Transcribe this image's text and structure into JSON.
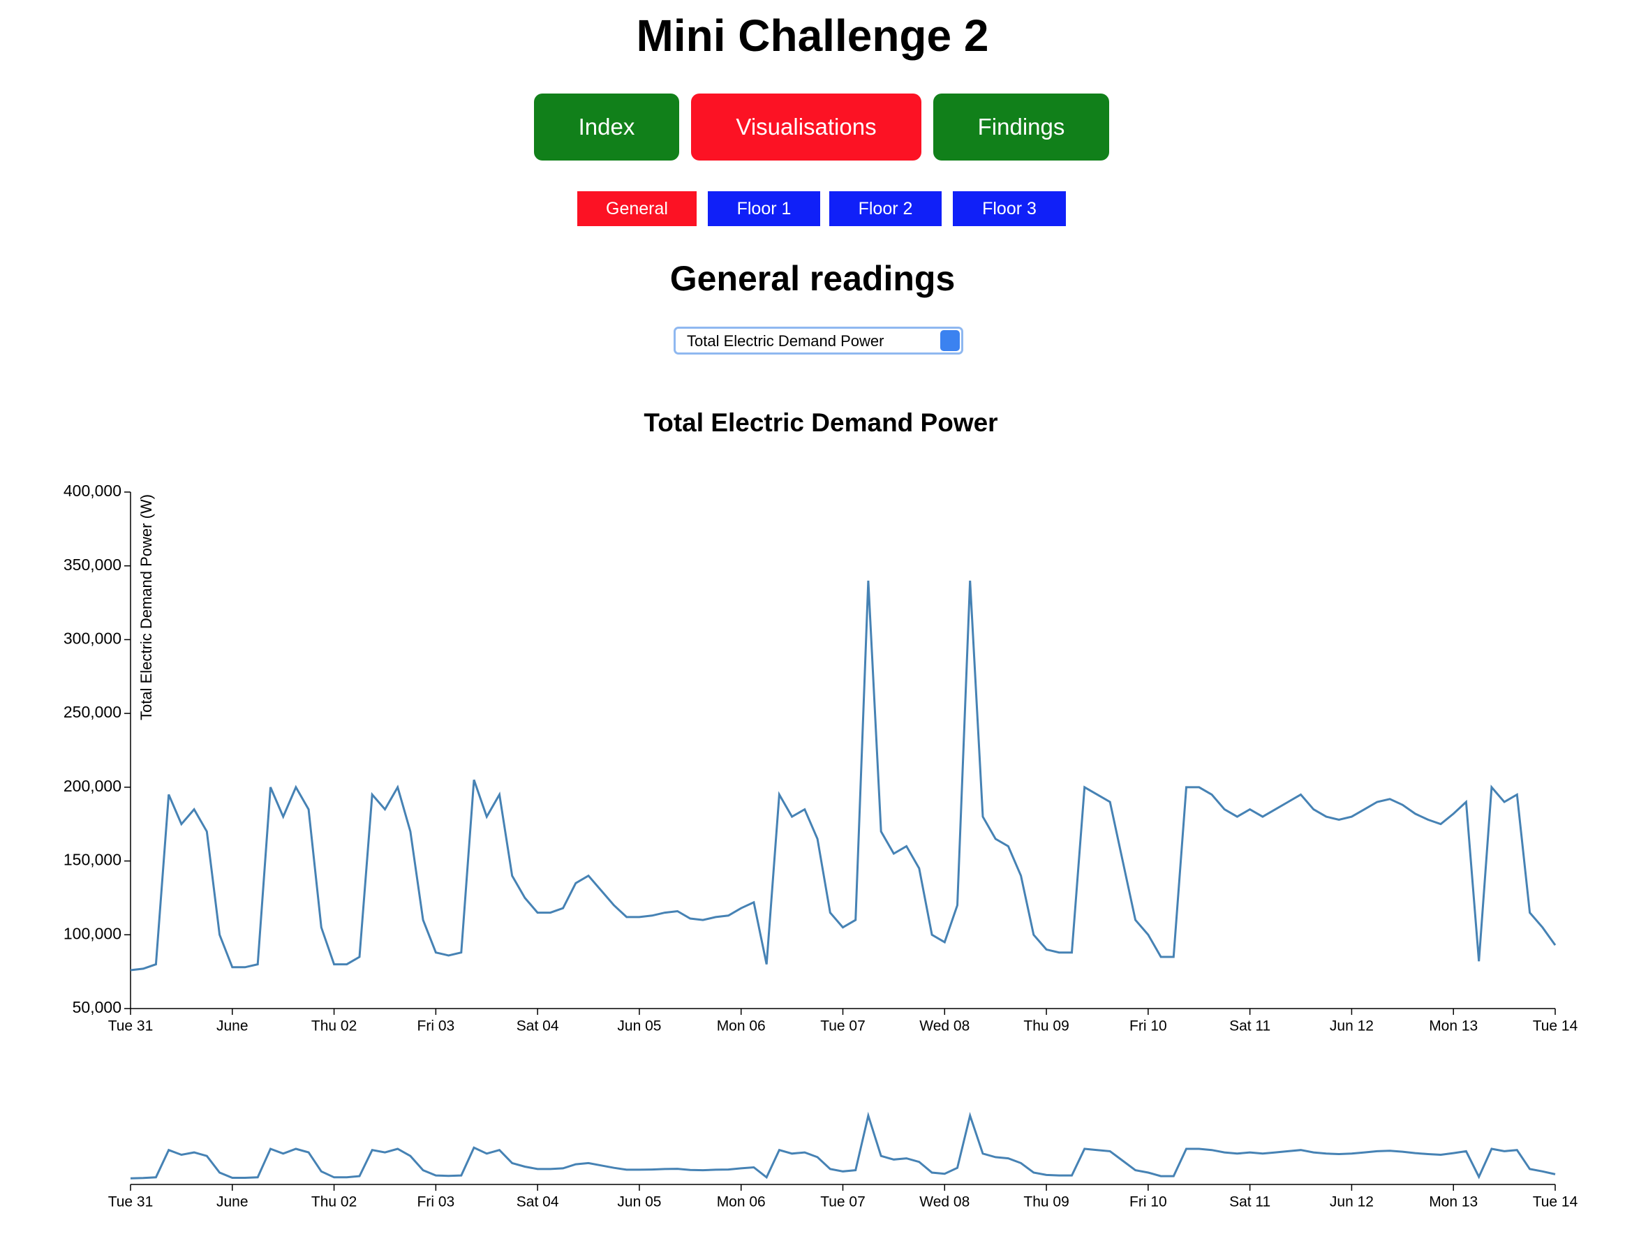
{
  "header": {
    "title": "Mini Challenge 2"
  },
  "nav": {
    "buttons": [
      "Index",
      "Visualisations",
      "Findings"
    ]
  },
  "subnav": {
    "buttons": [
      "General",
      "Floor 1",
      "Floor 2",
      "Floor 3"
    ]
  },
  "section": {
    "title": "General readings"
  },
  "dropdown": {
    "selected": "Total Electric Demand Power"
  },
  "chart_data": {
    "type": "line",
    "title": "Total Electric Demand Power",
    "y_label": "Total Electric Demand Power (W)",
    "color": "#4682b4",
    "x": [
      0,
      3,
      6,
      9,
      12,
      15,
      18,
      21,
      24,
      27,
      30,
      33,
      36,
      39,
      42,
      45,
      48,
      51,
      54,
      57,
      60,
      63,
      66,
      69,
      72,
      75,
      78,
      81,
      84,
      87,
      90,
      93,
      96,
      99,
      102,
      105,
      108,
      111,
      114,
      117,
      120,
      123,
      126,
      129,
      132,
      135,
      138,
      141,
      144,
      147,
      150,
      153,
      156,
      159,
      162,
      165,
      168,
      171,
      174,
      177,
      180,
      183,
      186,
      189,
      192,
      195,
      198,
      201,
      204,
      207,
      210,
      213,
      216,
      219,
      222,
      225,
      228,
      231,
      234,
      237,
      240,
      243,
      246,
      249,
      252,
      255,
      258,
      261,
      264,
      267,
      270,
      273,
      276,
      279,
      282,
      285,
      288,
      291,
      294,
      297,
      300,
      303,
      306,
      309,
      312,
      315,
      318,
      321,
      324,
      327,
      330,
      333,
      336
    ],
    "values": [
      76000,
      77000,
      80000,
      195000,
      175000,
      185000,
      170000,
      100000,
      78000,
      78000,
      80000,
      200000,
      180000,
      200000,
      185000,
      105000,
      80000,
      80000,
      85000,
      195000,
      185000,
      200000,
      170000,
      110000,
      88000,
      86000,
      88000,
      205000,
      180000,
      195000,
      140000,
      125000,
      115000,
      115000,
      118000,
      135000,
      140000,
      130000,
      120000,
      112000,
      112000,
      113000,
      115000,
      116000,
      111000,
      110000,
      112000,
      113000,
      118000,
      122000,
      80000,
      195000,
      180000,
      185000,
      165000,
      115000,
      105000,
      110000,
      340000,
      170000,
      155000,
      160000,
      145000,
      100000,
      95000,
      120000,
      340000,
      180000,
      165000,
      160000,
      140000,
      100000,
      90000,
      88000,
      88000,
      200000,
      195000,
      190000,
      150000,
      110000,
      100000,
      85000,
      85000,
      200000,
      200000,
      195000,
      185000,
      180000,
      185000,
      180000,
      185000,
      190000,
      195000,
      185000,
      180000,
      178000,
      180000,
      185000,
      190000,
      192000,
      188000,
      182000,
      178000,
      175000,
      182000,
      190000,
      82000,
      200000,
      190000,
      195000,
      115000,
      105000,
      93000
    ],
    "xlim": [
      0,
      336
    ],
    "xticks": [
      {
        "value": 0,
        "label": "Tue 31"
      },
      {
        "value": 24,
        "label": "June"
      },
      {
        "value": 48,
        "label": "Thu 02"
      },
      {
        "value": 72,
        "label": "Fri 03"
      },
      {
        "value": 96,
        "label": "Sat 04"
      },
      {
        "value": 120,
        "label": "Jun 05"
      },
      {
        "value": 144,
        "label": "Mon 06"
      },
      {
        "value": 168,
        "label": "Tue 07"
      },
      {
        "value": 192,
        "label": "Wed 08"
      },
      {
        "value": 216,
        "label": "Thu 09"
      },
      {
        "value": 240,
        "label": "Fri 10"
      },
      {
        "value": 264,
        "label": "Sat 11"
      },
      {
        "value": 288,
        "label": "Jun 12"
      },
      {
        "value": 312,
        "label": "Mon 13"
      },
      {
        "value": 336,
        "label": "Tue 14"
      }
    ],
    "ylim": [
      50000,
      400000
    ],
    "yticks": [
      {
        "value": 50000,
        "label": "50,000"
      },
      {
        "value": 100000,
        "label": "100,000"
      },
      {
        "value": 150000,
        "label": "150,000"
      },
      {
        "value": 200000,
        "label": "200,000"
      },
      {
        "value": 250000,
        "label": "250,000"
      },
      {
        "value": 300000,
        "label": "300,000"
      },
      {
        "value": 350000,
        "label": "350,000"
      },
      {
        "value": 400000,
        "label": "400,000"
      }
    ]
  }
}
